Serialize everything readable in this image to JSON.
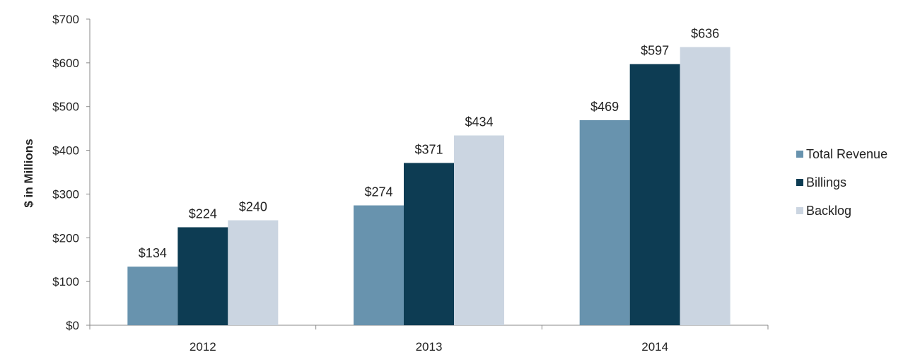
{
  "chart_data": {
    "type": "bar",
    "ylabel": "$ in Millions",
    "xlabel": "",
    "categories": [
      "2012",
      "2013",
      "2014"
    ],
    "ylim": [
      0,
      700
    ],
    "yticks": [
      0,
      100,
      200,
      300,
      400,
      500,
      600,
      700
    ],
    "ytick_labels": [
      "$0",
      "$100",
      "$200",
      "$300",
      "$400",
      "$500",
      "$600",
      "$700"
    ],
    "series": [
      {
        "name": "Total Revenue",
        "color": "#6893ae",
        "values": [
          134,
          274,
          469
        ],
        "labels": [
          "$134",
          "$274",
          "$469"
        ]
      },
      {
        "name": "Billings",
        "color": "#0d3c53",
        "values": [
          224,
          371,
          597
        ],
        "labels": [
          "$224",
          "$371",
          "$597"
        ]
      },
      {
        "name": "Backlog",
        "color": "#cbd5e1",
        "values": [
          240,
          434,
          636
        ],
        "labels": [
          "$240",
          "$434",
          "$636"
        ]
      }
    ],
    "legend_position": "right",
    "grid": false,
    "axis_color": "#888888"
  }
}
